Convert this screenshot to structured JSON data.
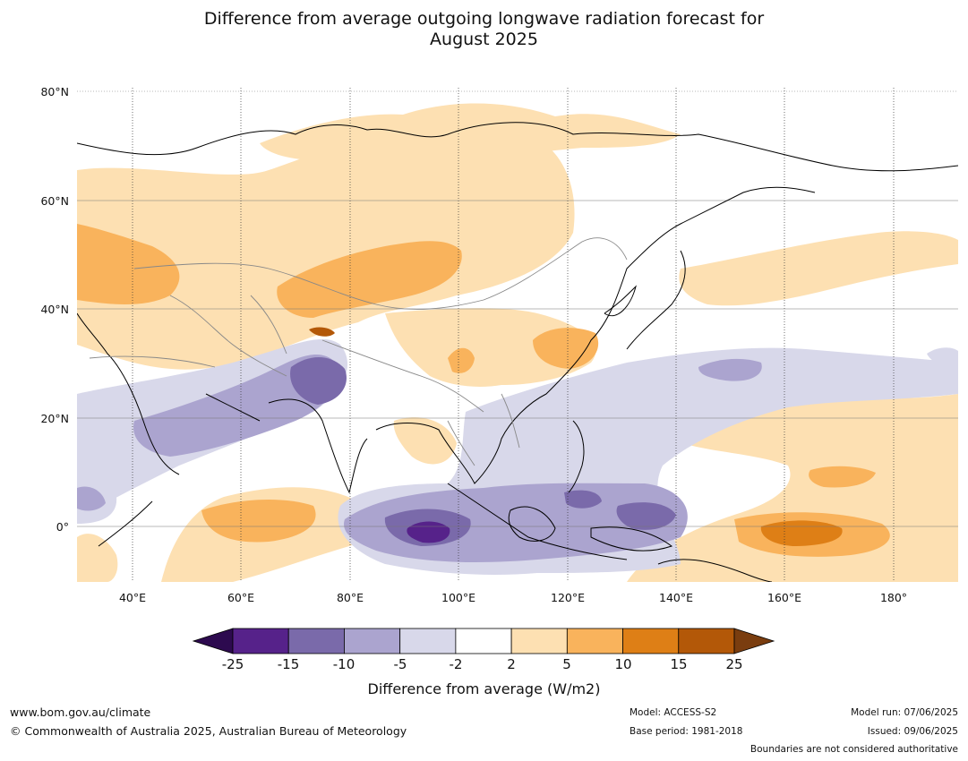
{
  "title": {
    "line1": "Difference from average outgoing longwave radiation forecast for",
    "line2": "August 2025"
  },
  "axes": {
    "lat_labels": [
      "80°N",
      "60°N",
      "40°N",
      "20°N",
      "0°"
    ],
    "lon_labels": [
      "40°E",
      "60°E",
      "80°E",
      "100°E",
      "120°E",
      "140°E",
      "160°E",
      "180°"
    ]
  },
  "colorbar": {
    "title": "Difference from average (W/m2)",
    "ticks": [
      "-25",
      "-15",
      "-10",
      "-5",
      "-2",
      "2",
      "5",
      "10",
      "15",
      "25"
    ],
    "colors": [
      "#2d0a4f",
      "#56228a",
      "#7a6aaa",
      "#aba4cf",
      "#d8d8ea",
      "#ffffff",
      "#fde0b2",
      "#f9b35c",
      "#de7f16",
      "#b35808",
      "#7a3d0f"
    ]
  },
  "footer": {
    "url": "www.bom.gov.au/climate",
    "copyright": "© Commonwealth of Australia 2025, Australian Bureau of Meteorology",
    "model": "Model: ACCESS-S2",
    "base_period": "Base period: 1981-2018",
    "model_run": "Model run: 07/06/2025",
    "issued": "Issued: 09/06/2025",
    "boundaries": "Boundaries are not considered authoritative"
  }
}
